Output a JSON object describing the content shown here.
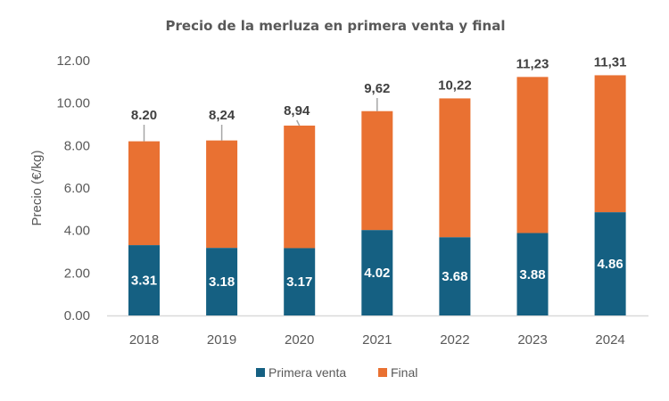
{
  "chart_data": {
    "type": "bar",
    "stacked": true,
    "title": "Precio de la merluza en primera venta y final",
    "xlabel": "",
    "ylabel": "Precio (€/kg)",
    "ylim": [
      0,
      12
    ],
    "yticks": [
      "0.00",
      "2.00",
      "4.00",
      "6.00",
      "8.00",
      "10.00",
      "12.00"
    ],
    "ytick_values": [
      0,
      2,
      4,
      6,
      8,
      10,
      12
    ],
    "categories": [
      "2018",
      "2019",
      "2020",
      "2021",
      "2022",
      "2023",
      "2024"
    ],
    "series": [
      {
        "name": "Primera venta",
        "color": "#156082",
        "values": [
          3.31,
          3.18,
          3.17,
          4.02,
          3.68,
          3.88,
          4.86
        ],
        "labels": [
          "3.31",
          "3.18",
          "3.17",
          "4.02",
          "3.68",
          "3.88",
          "4.86"
        ]
      },
      {
        "name": "Final",
        "color": "#E97132",
        "totals": [
          8.2,
          8.24,
          8.94,
          9.62,
          10.22,
          11.23,
          11.31
        ],
        "labels": [
          "8.20",
          "8,24",
          "8,94",
          "9,62",
          "10,22",
          "11,23",
          "11,31"
        ]
      }
    ],
    "legend": {
      "position": "bottom",
      "entries": [
        "Primera venta",
        "Final"
      ]
    },
    "grid": false
  }
}
